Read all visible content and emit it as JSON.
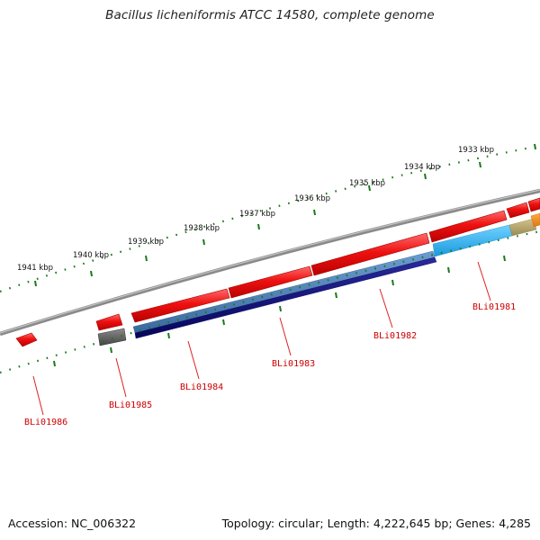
{
  "title": "Bacillus licheniformis ATCC 14580, complete genome",
  "accession": "Accession: NC_006322",
  "genome_stats": "Topology: circular; Length: 4,222,645 bp; Genes: 4,285",
  "ruler_labels": [
    "1933 kbp",
    "1934 kbp",
    "1935 kbp",
    "1936 kbp",
    "1937 kbp",
    "1938 kbp",
    "1939 kbp",
    "1940 kbp",
    "1941 kbp"
  ],
  "gene_labels": [
    "BLi01981",
    "BLi01982",
    "BLi01983",
    "BLi01984",
    "BLi01985",
    "BLi01986"
  ],
  "colors": {
    "backbone": "#8a8a8a",
    "ruler_ticks": "#1a7a1a",
    "forward_gene": "#ee1111",
    "steelblue_gene": "#4a7fb5",
    "navy_gene": "#0a0a7a",
    "skyblue_gene": "#22aaee",
    "khaki_gene": "#b5a56a",
    "orange_gene": "#ee8822",
    "gray_gene": "#666666",
    "label_text": "#cc0000"
  }
}
